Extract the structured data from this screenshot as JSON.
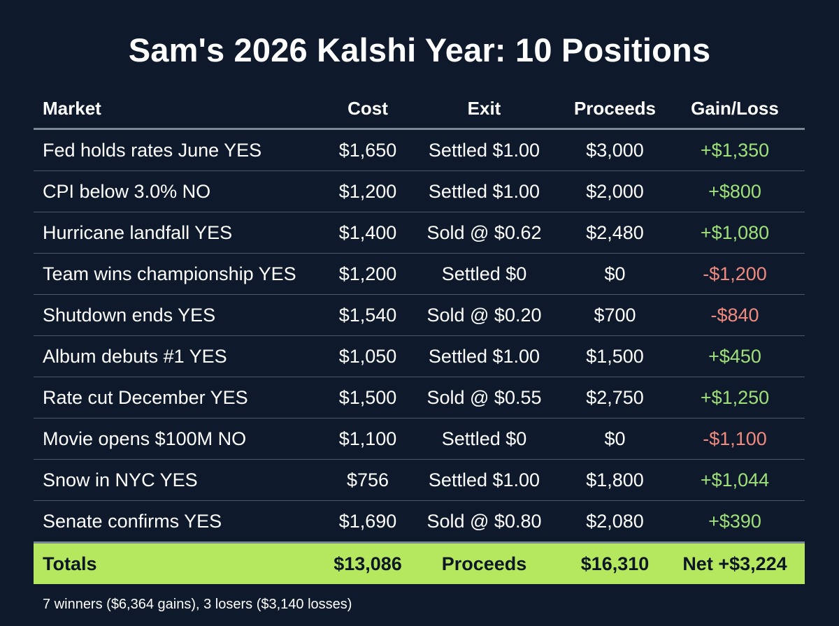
{
  "title": "Sam's 2026 Kalshi Year: 10 Positions",
  "headers": {
    "market": "Market",
    "cost": "Cost",
    "exit": "Exit",
    "proceeds": "Proceeds",
    "gain": "Gain/Loss"
  },
  "rows": [
    {
      "market": "Fed holds rates June YES",
      "cost": "$1,650",
      "exit": "Settled $1.00",
      "proceeds": "$3,000",
      "gain": "+$1,350",
      "sign": "pos"
    },
    {
      "market": "CPI below 3.0% NO",
      "cost": "$1,200",
      "exit": "Settled $1.00",
      "proceeds": "$2,000",
      "gain": "+$800",
      "sign": "pos"
    },
    {
      "market": "Hurricane landfall YES",
      "cost": "$1,400",
      "exit": "Sold @ $0.62",
      "proceeds": "$2,480",
      "gain": "+$1,080",
      "sign": "pos"
    },
    {
      "market": "Team wins championship YES",
      "cost": "$1,200",
      "exit": "Settled $0",
      "proceeds": "$0",
      "gain": "-$1,200",
      "sign": "neg"
    },
    {
      "market": "Shutdown ends YES",
      "cost": "$1,540",
      "exit": "Sold @ $0.20",
      "proceeds": "$700",
      "gain": "-$840",
      "sign": "neg"
    },
    {
      "market": "Album debuts #1 YES",
      "cost": "$1,050",
      "exit": "Settled $1.00",
      "proceeds": "$1,500",
      "gain": "+$450",
      "sign": "pos"
    },
    {
      "market": "Rate cut December YES",
      "cost": "$1,500",
      "exit": "Sold @ $0.55",
      "proceeds": "$2,750",
      "gain": "+$1,250",
      "sign": "pos"
    },
    {
      "market": "Movie opens $100M NO",
      "cost": "$1,100",
      "exit": "Settled $0",
      "proceeds": "$0",
      "gain": "-$1,100",
      "sign": "neg"
    },
    {
      "market": "Snow in NYC YES",
      "cost": "$756",
      "exit": "Settled $1.00",
      "proceeds": "$1,800",
      "gain": "+$1,044",
      "sign": "pos"
    },
    {
      "market": "Senate confirms YES",
      "cost": "$1,690",
      "exit": "Sold @ $0.80",
      "proceeds": "$2,080",
      "gain": "+$390",
      "sign": "pos"
    }
  ],
  "totals": {
    "label": "Totals",
    "cost": "$13,086",
    "exit": "Proceeds",
    "proceeds": "$16,310",
    "gain": "Net +$3,224"
  },
  "footnote": "7 winners ($6,364 gains), 3 losers ($3,140 losses)",
  "colors": {
    "background": "#0e1a2b",
    "gain_positive": "#9fe07a",
    "gain_negative": "#f08a7e",
    "totals_row": "#b5e85f"
  }
}
